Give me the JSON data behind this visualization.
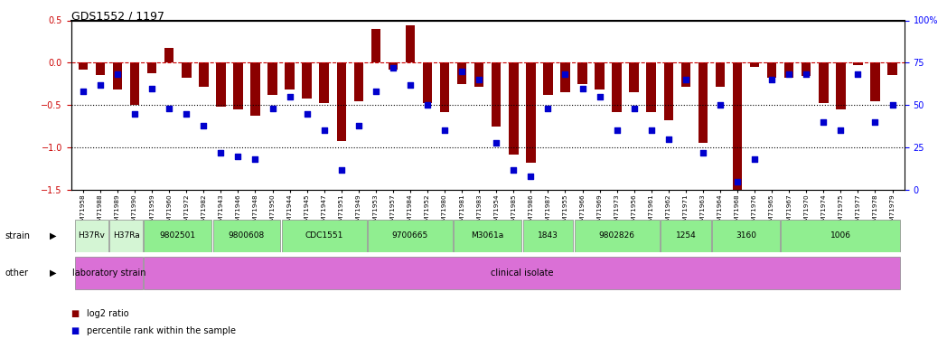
{
  "title": "GDS1552 / 1197",
  "samples": [
    "GSM71958",
    "GSM71988",
    "GSM71989",
    "GSM71990",
    "GSM71959",
    "GSM71960",
    "GSM71972",
    "GSM71982",
    "GSM71943",
    "GSM71946",
    "GSM71948",
    "GSM71950",
    "GSM71944",
    "GSM71945",
    "GSM71947",
    "GSM71951",
    "GSM71949",
    "GSM71953",
    "GSM71957",
    "GSM71984",
    "GSM71952",
    "GSM71980",
    "GSM71981",
    "GSM71983",
    "GSM71954",
    "GSM71985",
    "GSM71986",
    "GSM71987",
    "GSM71955",
    "GSM71966",
    "GSM71969",
    "GSM71973",
    "GSM71956",
    "GSM71961",
    "GSM71962",
    "GSM71971",
    "GSM71963",
    "GSM71964",
    "GSM71968",
    "GSM71976",
    "GSM71965",
    "GSM71967",
    "GSM71970",
    "GSM71974",
    "GSM71975",
    "GSM71977",
    "GSM71978",
    "GSM71979"
  ],
  "log2_ratio": [
    -0.08,
    -0.15,
    -0.32,
    -0.5,
    -0.12,
    0.18,
    -0.18,
    -0.28,
    -0.52,
    -0.55,
    -0.62,
    -0.38,
    -0.32,
    -0.42,
    -0.48,
    -0.92,
    -0.45,
    0.4,
    -0.08,
    0.44,
    -0.48,
    -0.58,
    -0.25,
    -0.28,
    -0.75,
    -1.08,
    -1.18,
    -0.38,
    -0.35,
    -0.25,
    -0.32,
    -0.58,
    -0.35,
    -0.58,
    -0.68,
    -0.28,
    -0.95,
    -0.28,
    -1.58,
    -0.05,
    -0.18,
    -0.18,
    -0.16,
    -0.48,
    -0.55,
    -0.03,
    -0.45,
    -0.15
  ],
  "percentile": [
    58,
    62,
    68,
    45,
    60,
    48,
    45,
    38,
    22,
    20,
    18,
    48,
    55,
    45,
    35,
    12,
    38,
    58,
    72,
    62,
    50,
    35,
    70,
    65,
    28,
    12,
    8,
    48,
    68,
    60,
    55,
    35,
    48,
    35,
    30,
    65,
    22,
    50,
    5,
    18,
    65,
    68,
    68,
    40,
    35,
    68,
    40,
    50
  ],
  "strain_groups": [
    {
      "label": "H37Rv",
      "start": 0,
      "end": 1,
      "color": "#d4f5d4"
    },
    {
      "label": "H37Ra",
      "start": 2,
      "end": 3,
      "color": "#d4f5d4"
    },
    {
      "label": "9802501",
      "start": 4,
      "end": 7,
      "color": "#90ee90"
    },
    {
      "label": "9800608",
      "start": 8,
      "end": 11,
      "color": "#90ee90"
    },
    {
      "label": "CDC1551",
      "start": 12,
      "end": 16,
      "color": "#90ee90"
    },
    {
      "label": "9700665",
      "start": 17,
      "end": 21,
      "color": "#90ee90"
    },
    {
      "label": "M3061a",
      "start": 22,
      "end": 25,
      "color": "#90ee90"
    },
    {
      "label": "1843",
      "start": 26,
      "end": 28,
      "color": "#90ee90"
    },
    {
      "label": "9802826",
      "start": 29,
      "end": 33,
      "color": "#90ee90"
    },
    {
      "label": "1254",
      "start": 34,
      "end": 36,
      "color": "#90ee90"
    },
    {
      "label": "3160",
      "start": 37,
      "end": 40,
      "color": "#90ee90"
    },
    {
      "label": "1006",
      "start": 41,
      "end": 47,
      "color": "#90ee90"
    }
  ],
  "other_groups": [
    {
      "label": "laboratory strain",
      "start": 0,
      "end": 3,
      "color": "#da70d6"
    },
    {
      "label": "clinical isolate",
      "start": 4,
      "end": 47,
      "color": "#da70d6"
    }
  ],
  "bar_color": "#8b0000",
  "dot_color": "#0000cd",
  "hline_color": "#cc0000",
  "left_yticks": [
    -1.5,
    -1.0,
    -0.5,
    0.0,
    0.5
  ],
  "right_yticks": [
    0,
    25,
    50,
    75,
    100
  ],
  "right_yticklabels": [
    "0",
    "25",
    "50",
    "75",
    "100%"
  ]
}
